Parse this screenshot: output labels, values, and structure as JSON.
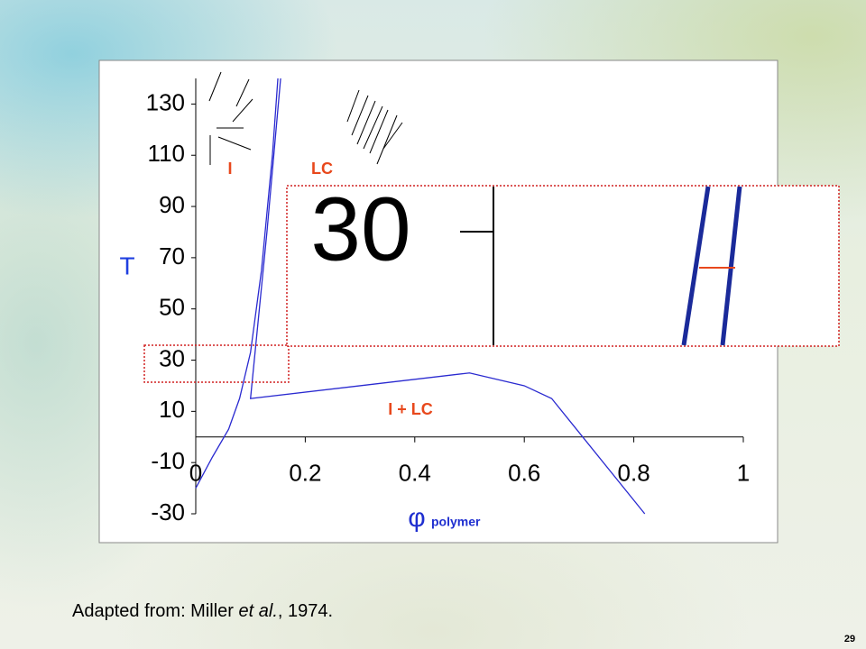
{
  "chart_data": {
    "type": "line",
    "axis_label_y": "T",
    "axis_label_x_symbol": "φ",
    "axis_label_x": "polymer",
    "region_labels": [
      "I",
      "LC",
      "I + LC"
    ],
    "inset_label": "30",
    "xlim": [
      0,
      1
    ],
    "ylim": [
      -30,
      140
    ],
    "xticks": [
      0,
      0.2,
      0.4,
      0.6,
      0.8,
      1
    ],
    "yticks": [
      -30,
      -10,
      10,
      30,
      50,
      70,
      90,
      110,
      130
    ],
    "series": [
      {
        "color": "#2a2ad0",
        "x": [
          0,
          0.03,
          0.06,
          0.08,
          0.1,
          0.12,
          0.14,
          0.15
        ],
        "values": [
          -20,
          -8,
          3,
          15,
          33,
          65,
          110,
          140
        ]
      },
      {
        "color": "#2a2ad0",
        "x": [
          0.155,
          0.13,
          0.1,
          0.3,
          0.5,
          0.6,
          0.65,
          0.82
        ],
        "values": [
          140,
          80,
          15,
          20,
          25,
          20,
          15,
          -30
        ]
      }
    ]
  },
  "caption": {
    "before": "Adapted from: Miller ",
    "italic": "et al.",
    "after": ", 1974."
  },
  "page_number": "29"
}
